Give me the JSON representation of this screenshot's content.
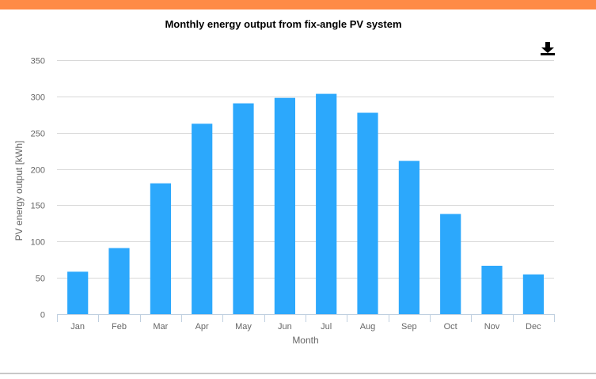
{
  "header": {
    "accent_color": "#fe8b46"
  },
  "toolbar": {
    "download_icon": "download-icon"
  },
  "chart_data": {
    "type": "bar",
    "title": "Monthly energy output from fix-angle PV system",
    "xlabel": "Month",
    "ylabel": "PV energy output [kWh]",
    "categories": [
      "Jan",
      "Feb",
      "Mar",
      "Apr",
      "May",
      "Jun",
      "Jul",
      "Aug",
      "Sep",
      "Oct",
      "Nov",
      "Dec"
    ],
    "series": [
      {
        "name": "PV energy output",
        "values": [
          58.4,
          91.0,
          180.2,
          262.3,
          290.5,
          298.0,
          303.6,
          277.5,
          211.2,
          138.0,
          66.6,
          54.7
        ],
        "color": "#2ca8fc"
      }
    ],
    "ylim": [
      0,
      350
    ],
    "yticks": [
      0,
      50,
      100,
      150,
      200,
      250,
      300,
      350
    ],
    "grid": true,
    "legend": "none"
  }
}
